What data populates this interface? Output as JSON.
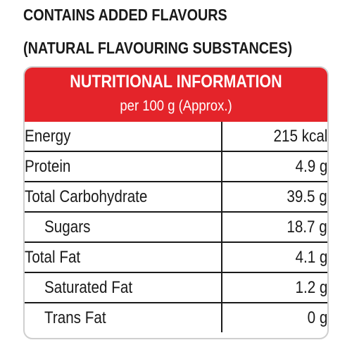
{
  "caption": {
    "line1": "CONTAINS ADDED FLAVOURS",
    "line2": "(NATURAL FLAVOURING SUBSTANCES)"
  },
  "panel": {
    "title": "NUTRITIONAL INFORMATION",
    "subtitle": "per 100 g (Approx.)",
    "header_color": "#e4242a"
  },
  "nutrients": [
    {
      "name": "Energy",
      "value": "215 kcal",
      "sub": false
    },
    {
      "name": "Protein",
      "value": "4.9 g",
      "sub": false
    },
    {
      "name": "Total Carbohydrate",
      "value": "39.5 g",
      "sub": false
    },
    {
      "name": "Sugars",
      "value": "18.7 g",
      "sub": true
    },
    {
      "name": "Total Fat",
      "value": "4.1 g",
      "sub": false
    },
    {
      "name": "Saturated Fat",
      "value": "1.2 g",
      "sub": true
    },
    {
      "name": "Trans Fat",
      "value": "0 g",
      "sub": true
    }
  ]
}
